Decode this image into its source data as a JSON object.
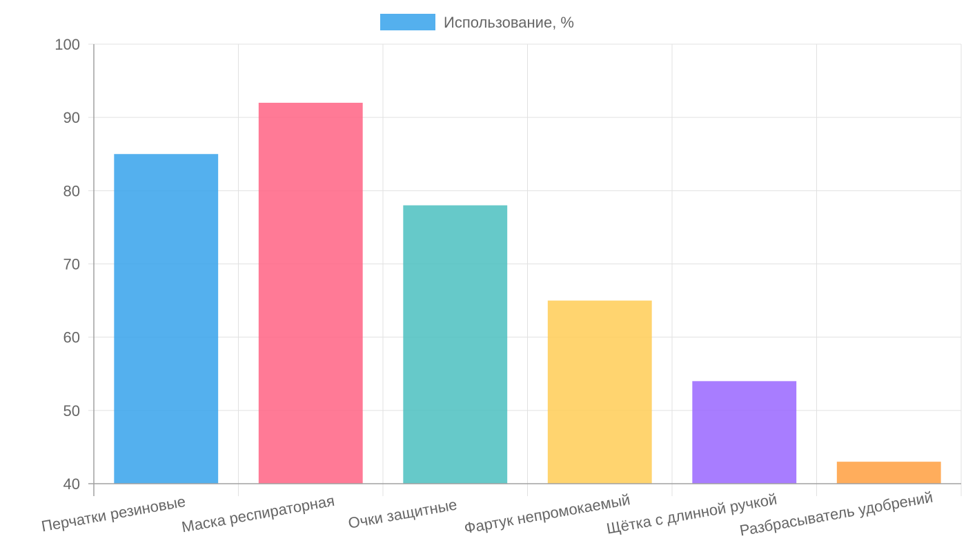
{
  "chart_data": {
    "type": "bar",
    "categories": [
      "Перчатки резиновые",
      "Маска респираторная",
      "Очки защитные",
      "Фартук непромокаемый",
      "Щётка с длинной ручкой",
      "Разбрасыватель удобрений"
    ],
    "series": [
      {
        "name": "Использование, %",
        "values": [
          85,
          92,
          78,
          65,
          54,
          43
        ]
      }
    ],
    "colors": [
      "#36a2eb",
      "#ff6384",
      "#4bc0c0",
      "#ffcd56",
      "#9966ff",
      "#ff9f40"
    ],
    "legend_color": "#36a2eb",
    "ylim": [
      40,
      100
    ],
    "yticks": [
      40,
      50,
      60,
      70,
      80,
      90,
      100
    ],
    "grid": true,
    "legend_position": "top"
  }
}
